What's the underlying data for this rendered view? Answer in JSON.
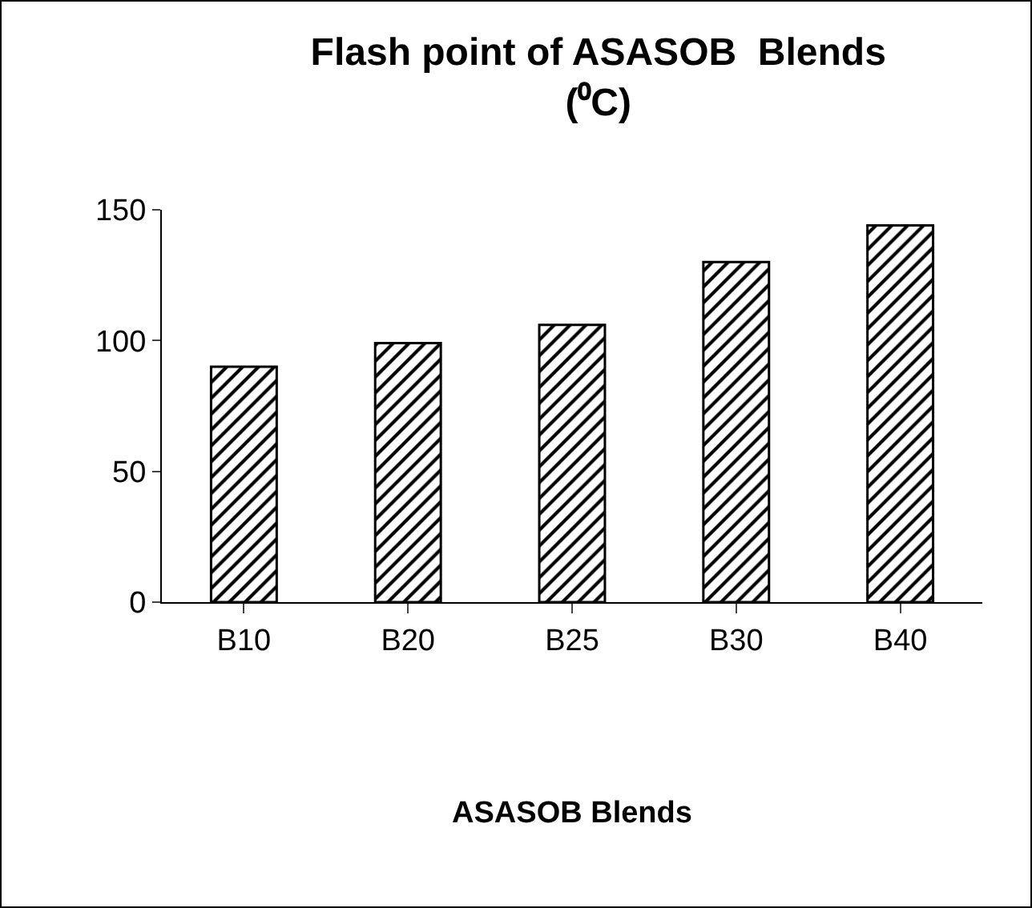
{
  "chart_data": {
    "type": "bar",
    "title": "Flash point of ASASOB  Blends (⁰C)",
    "xlabel": "ASASOB Blends",
    "categories": [
      "B10",
      "B20",
      "B25",
      "B30",
      "B40"
    ],
    "values": [
      90,
      99,
      106,
      130,
      144
    ],
    "color": "#000000",
    "ylim": [
      0,
      150
    ],
    "yticks": [
      0,
      50,
      100,
      150
    ],
    "grid": false,
    "legend": false
  }
}
